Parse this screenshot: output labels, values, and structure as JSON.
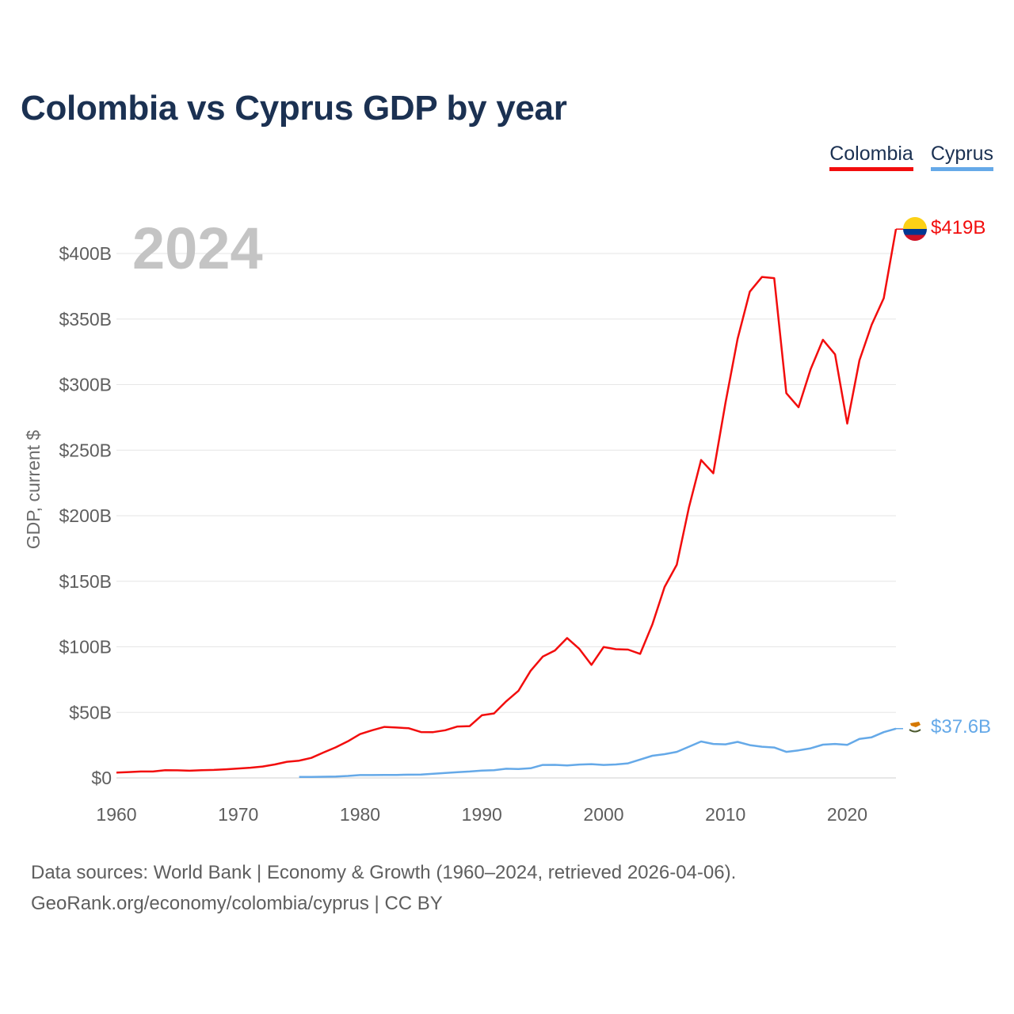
{
  "title": "Colombia vs Cyprus GDP by year",
  "legend": [
    {
      "name": "Colombia",
      "color": "#f20d0d"
    },
    {
      "name": "Cyprus",
      "color": "#65a9e8"
    }
  ],
  "source": {
    "line1": "Data sources: World Bank | Economy & Growth (1960–2024, retrieved 2026-04-06).",
    "line2": "GeoRank.org/economy/colombia/cyprus | CC BY"
  },
  "chart_data": {
    "type": "line",
    "title": "Colombia vs Cyprus GDP by year",
    "year_label": "2024",
    "xlabel": "",
    "ylabel": "GDP, current $",
    "xlim": [
      1960,
      2024
    ],
    "ylim": [
      0,
      420
    ],
    "y_unit": "billion US$",
    "x_ticks": [
      1960,
      1970,
      1980,
      1990,
      2000,
      2010,
      2020
    ],
    "x_tick_labels": [
      "1960",
      "1970",
      "1980",
      "1990",
      "2000",
      "2010",
      "2020"
    ],
    "y_ticks": [
      0,
      50,
      100,
      150,
      200,
      250,
      300,
      350,
      400
    ],
    "y_tick_labels": [
      "$0",
      "$50B",
      "$100B",
      "$150B",
      "$200B",
      "$250B",
      "$300B",
      "$350B",
      "$400B"
    ],
    "grid": true,
    "legend_position": "top-right",
    "series": [
      {
        "name": "Colombia",
        "color": "#f20d0d",
        "end_label": "$419B",
        "x": [
          1960,
          1961,
          1962,
          1963,
          1964,
          1965,
          1966,
          1967,
          1968,
          1969,
          1970,
          1971,
          1972,
          1973,
          1974,
          1975,
          1976,
          1977,
          1978,
          1979,
          1980,
          1981,
          1982,
          1983,
          1984,
          1985,
          1986,
          1987,
          1988,
          1989,
          1990,
          1991,
          1992,
          1993,
          1994,
          1995,
          1996,
          1997,
          1998,
          1999,
          2000,
          2001,
          2002,
          2003,
          2004,
          2005,
          2006,
          2007,
          2008,
          2009,
          2010,
          2011,
          2012,
          2013,
          2014,
          2015,
          2016,
          2017,
          2018,
          2019,
          2020,
          2021,
          2022,
          2023,
          2024
        ],
        "values": [
          4.1,
          4.5,
          4.9,
          4.9,
          5.9,
          5.8,
          5.5,
          5.9,
          6.1,
          6.6,
          7.2,
          7.8,
          8.7,
          10.3,
          12.3,
          13.2,
          15.3,
          19.4,
          23.3,
          27.9,
          33.4,
          36.4,
          38.9,
          38.4,
          37.9,
          35.0,
          34.9,
          36.4,
          39.2,
          39.5,
          47.8,
          49.2,
          58.4,
          66.4,
          81.7,
          92.5,
          97.2,
          106.7,
          98.4,
          86.2,
          99.9,
          98.2,
          97.9,
          94.6,
          117.1,
          145.6,
          162.6,
          206.2,
          242.5,
          232.4,
          286.1,
          334.9,
          370.9,
          382.1,
          381.2,
          293.5,
          282.7,
          311.9,
          334.2,
          323.1,
          270.3,
          318.5,
          345.6,
          365.9,
          418.6
        ]
      },
      {
        "name": "Cyprus",
        "color": "#65a9e8",
        "end_label": "$37.6B",
        "x": [
          1975,
          1976,
          1977,
          1978,
          1979,
          1980,
          1981,
          1982,
          1983,
          1984,
          1985,
          1986,
          1987,
          1988,
          1989,
          1990,
          1991,
          1992,
          1993,
          1994,
          1995,
          1996,
          1997,
          1998,
          1999,
          2000,
          2001,
          2002,
          2003,
          2004,
          2005,
          2006,
          2007,
          2008,
          2009,
          2010,
          2011,
          2012,
          2013,
          2014,
          2015,
          2016,
          2017,
          2018,
          2019,
          2020,
          2021,
          2022,
          2023,
          2024
        ],
        "values": [
          0.7,
          0.7,
          0.9,
          1.1,
          1.5,
          2.2,
          2.2,
          2.3,
          2.3,
          2.5,
          2.6,
          3.2,
          3.8,
          4.4,
          4.9,
          5.6,
          5.9,
          7.0,
          6.8,
          7.4,
          9.9,
          10.0,
          9.5,
          10.2,
          10.5,
          9.9,
          10.3,
          11.1,
          14.0,
          16.9,
          18.1,
          19.9,
          23.8,
          27.8,
          25.9,
          25.6,
          27.5,
          25.0,
          23.8,
          23.2,
          19.9,
          21.0,
          22.6,
          25.4,
          25.9,
          25.2,
          29.8,
          31.0,
          34.9,
          37.6
        ]
      }
    ]
  }
}
